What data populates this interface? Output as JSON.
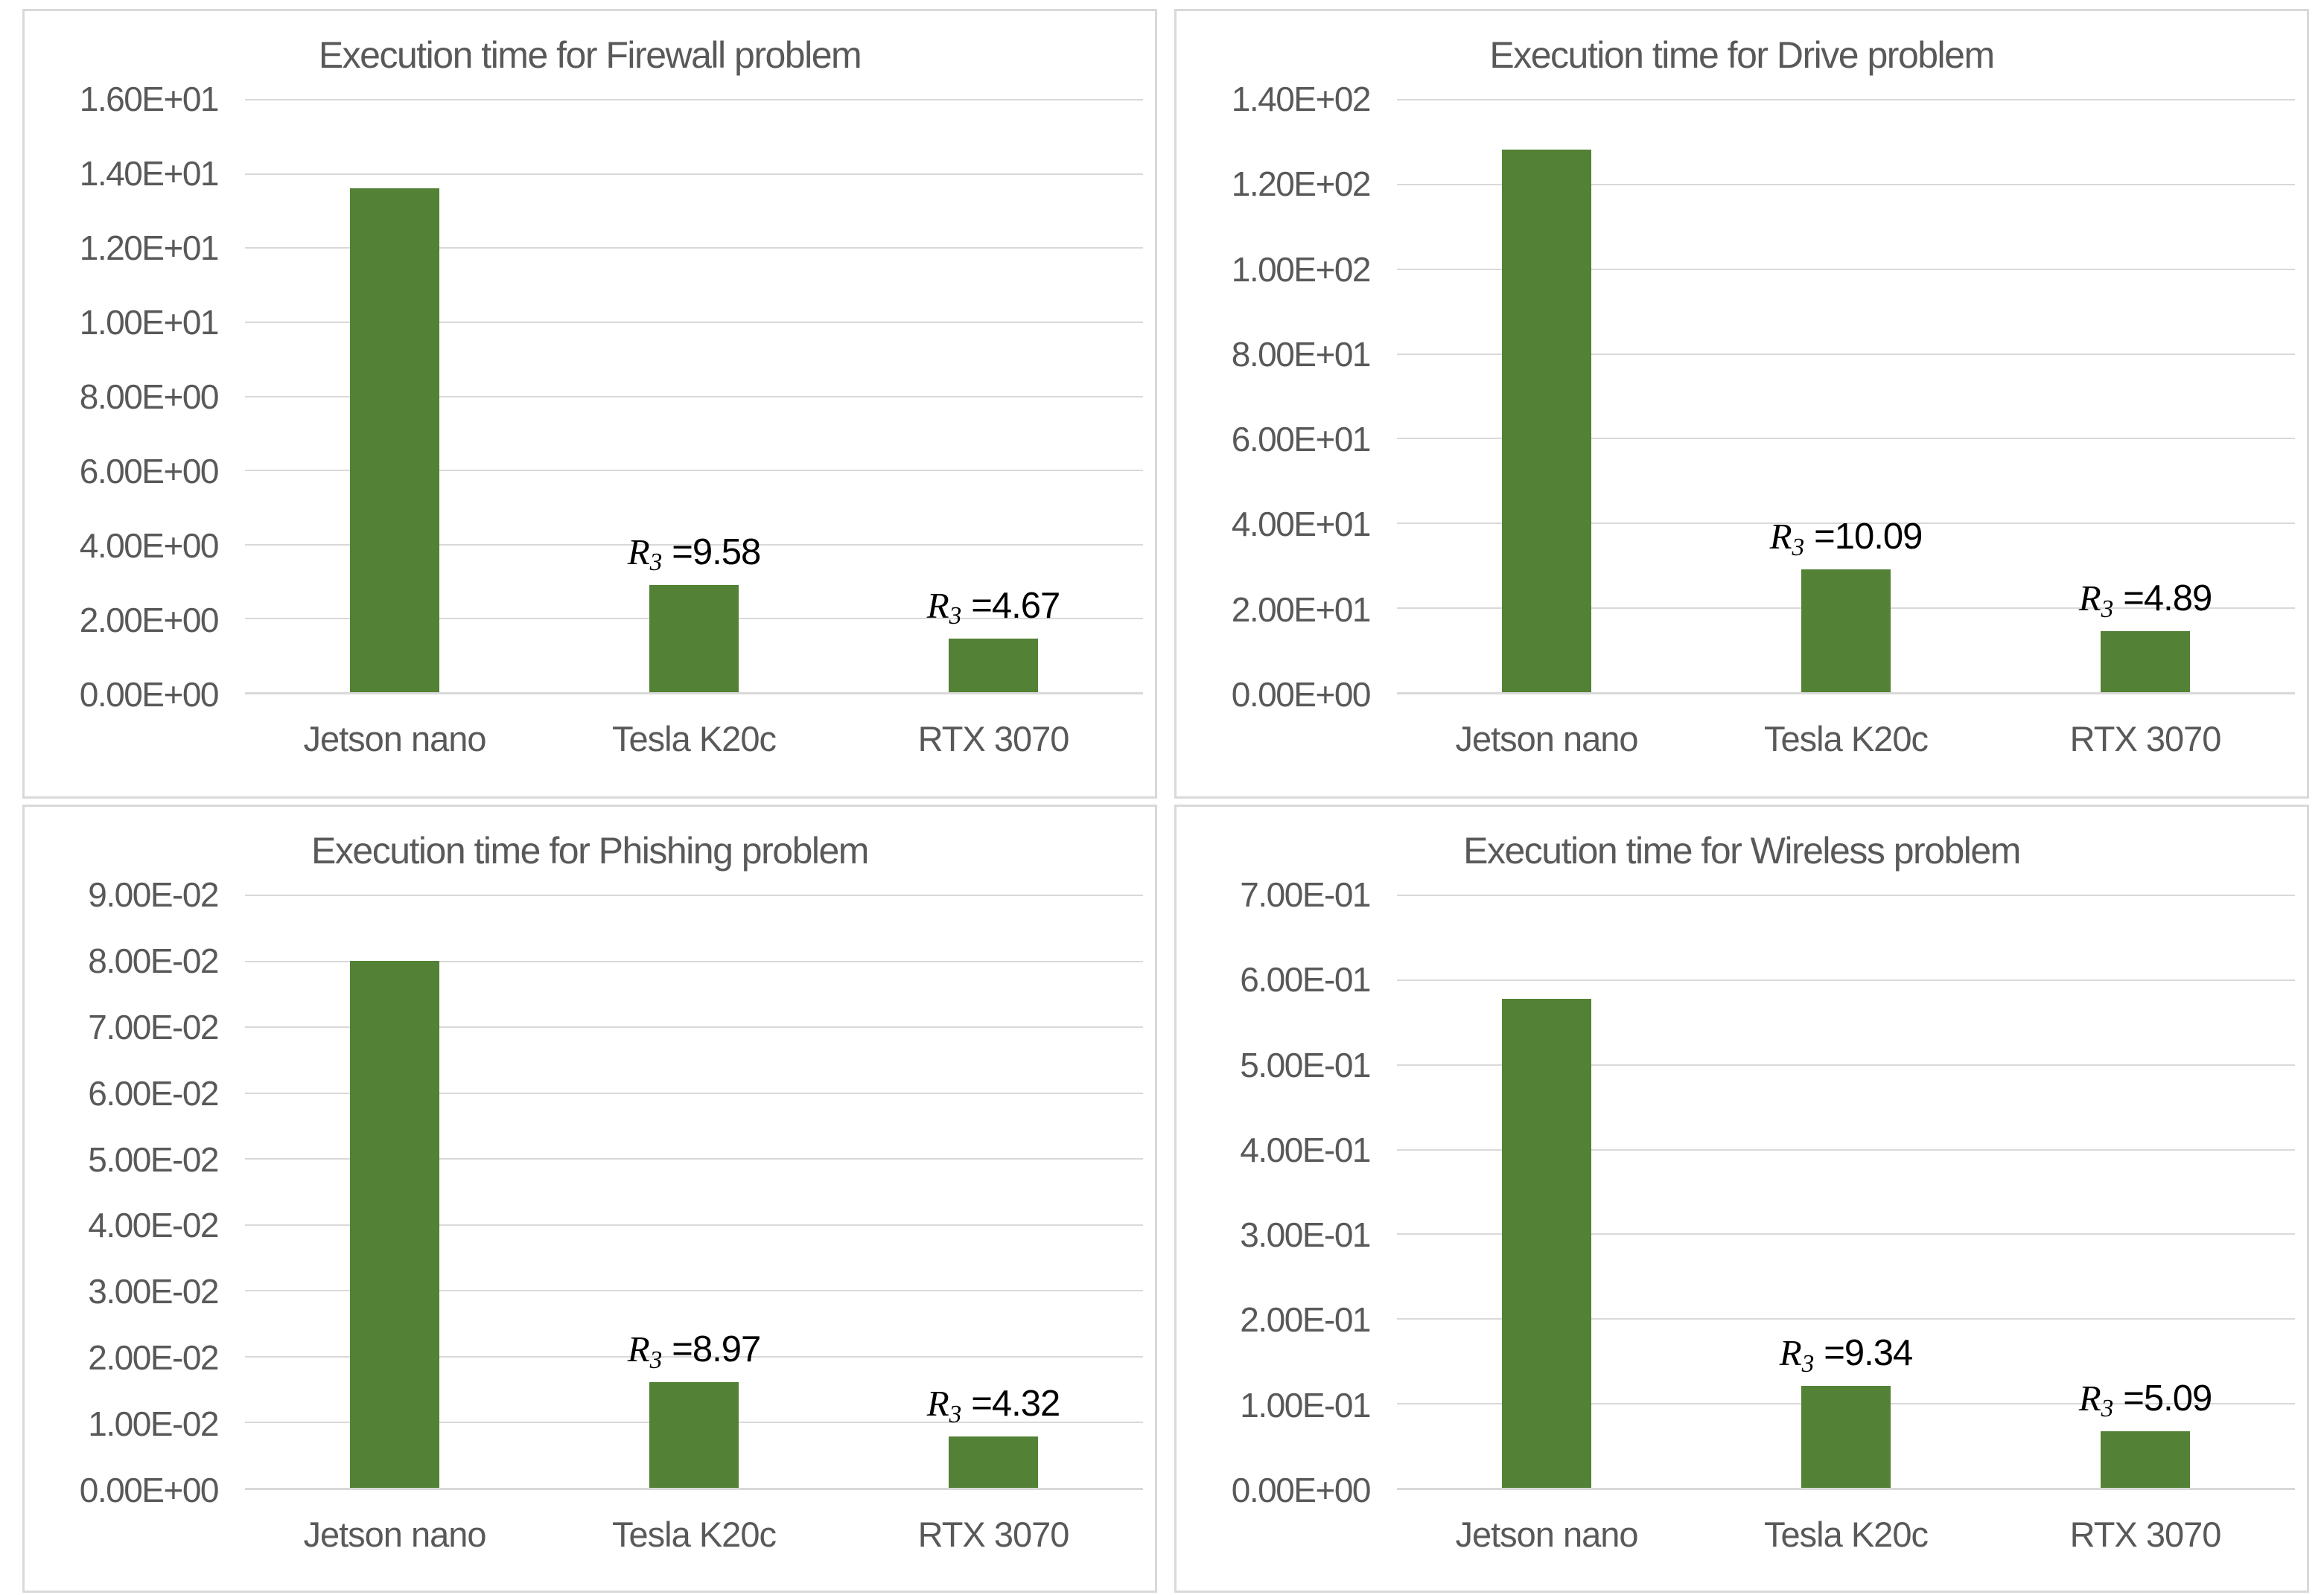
{
  "style": {
    "bar_color": "#538135",
    "grid_color": "#d9d9d9",
    "panel_border_color": "#d9d9d9",
    "axis_text_color": "#595959",
    "annotation_color": "#000000",
    "background": "#ffffff"
  },
  "annotation": {
    "symbol": "R",
    "subscript": "3",
    "equals": "="
  },
  "chart_data": [
    {
      "type": "bar",
      "title": "Execution time for Firewall problem",
      "categories": [
        "Jetson nano",
        "Tesla K20c",
        "RTX 3070"
      ],
      "values": [
        13.6,
        2.9,
        1.45
      ],
      "y_max": 16,
      "y_step": 2,
      "ylim": [
        0,
        16
      ],
      "grid": true,
      "y_tick_labels": [
        "1.60E+01",
        "1.40E+01",
        "1.20E+01",
        "1.00E+01",
        "8.00E+00",
        "6.00E+00",
        "4.00E+00",
        "2.00E+00",
        "0.00E+00"
      ],
      "annotations": [
        null,
        "9.58",
        "4.67"
      ]
    },
    {
      "type": "bar",
      "title": "Execution time for Drive problem",
      "categories": [
        "Jetson nano",
        "Tesla K20c",
        "RTX 3070"
      ],
      "values": [
        128,
        29,
        14.4
      ],
      "y_max": 140,
      "y_step": 20,
      "ylim": [
        0,
        140
      ],
      "grid": true,
      "y_tick_labels": [
        "1.40E+02",
        "1.20E+02",
        "1.00E+02",
        "8.00E+01",
        "6.00E+01",
        "4.00E+01",
        "2.00E+01",
        "0.00E+00"
      ],
      "annotations": [
        null,
        "10.09",
        "4.89"
      ]
    },
    {
      "type": "bar",
      "title": "Execution time for Phishing problem",
      "categories": [
        "Jetson nano",
        "Tesla K20c",
        "RTX 3070"
      ],
      "values": [
        0.08,
        0.016,
        0.0078
      ],
      "y_max": 0.09,
      "y_step": 0.01,
      "ylim": [
        0,
        0.09
      ],
      "grid": true,
      "y_tick_labels": [
        "9.00E-02",
        "8.00E-02",
        "7.00E-02",
        "6.00E-02",
        "5.00E-02",
        "4.00E-02",
        "3.00E-02",
        "2.00E-02",
        "1.00E-02",
        "0.00E+00"
      ],
      "annotations": [
        null,
        "8.97",
        "4.32"
      ]
    },
    {
      "type": "bar",
      "title": "Execution time for Wireless problem",
      "categories": [
        "Jetson nano",
        "Tesla K20c",
        "RTX 3070"
      ],
      "values": [
        0.577,
        0.12,
        0.067
      ],
      "y_max": 0.7,
      "y_step": 0.1,
      "ylim": [
        0,
        0.7
      ],
      "grid": true,
      "y_tick_labels": [
        "7.00E-01",
        "6.00E-01",
        "5.00E-01",
        "4.00E-01",
        "3.00E-01",
        "2.00E-01",
        "1.00E-01",
        "0.00E+00"
      ],
      "annotations": [
        null,
        "9.34",
        "5.09"
      ]
    }
  ]
}
